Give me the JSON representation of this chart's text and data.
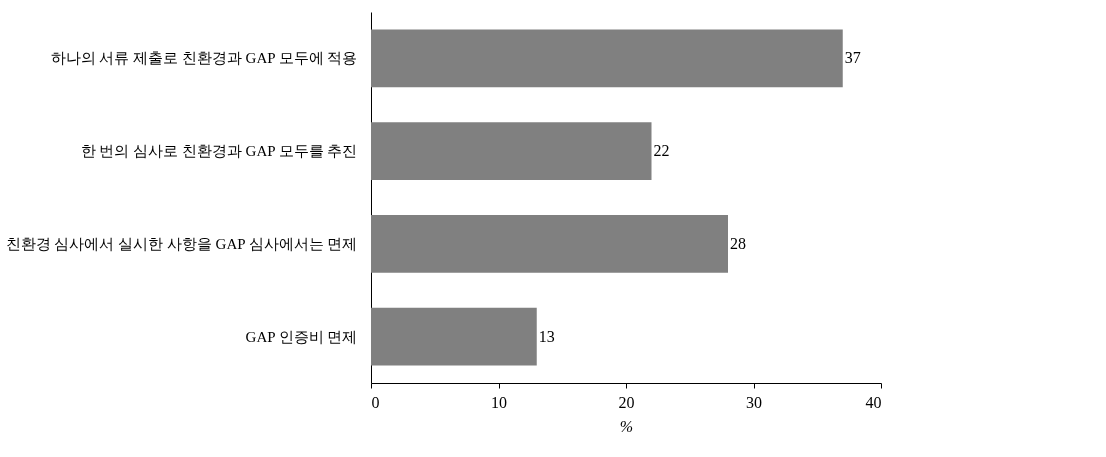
{
  "chart_data": {
    "type": "bar",
    "orientation": "horizontal",
    "xlabel": "%",
    "categories": [
      "하나의 서류 제출로 친환경과 GAP 모두에 적용",
      "한 번의 심사로 친환경과 GAP 모두를 추진",
      "친환경 심사에서 실시한 사항을 GAP 심사에서는 면제",
      "GAP 인증비 면제"
    ],
    "values": [
      37,
      22,
      28,
      13
    ],
    "color": "#808080",
    "xlim": [
      0,
      40
    ],
    "xticks": [
      0,
      10,
      20,
      30,
      40
    ],
    "data_labels": true,
    "grid": false
  }
}
